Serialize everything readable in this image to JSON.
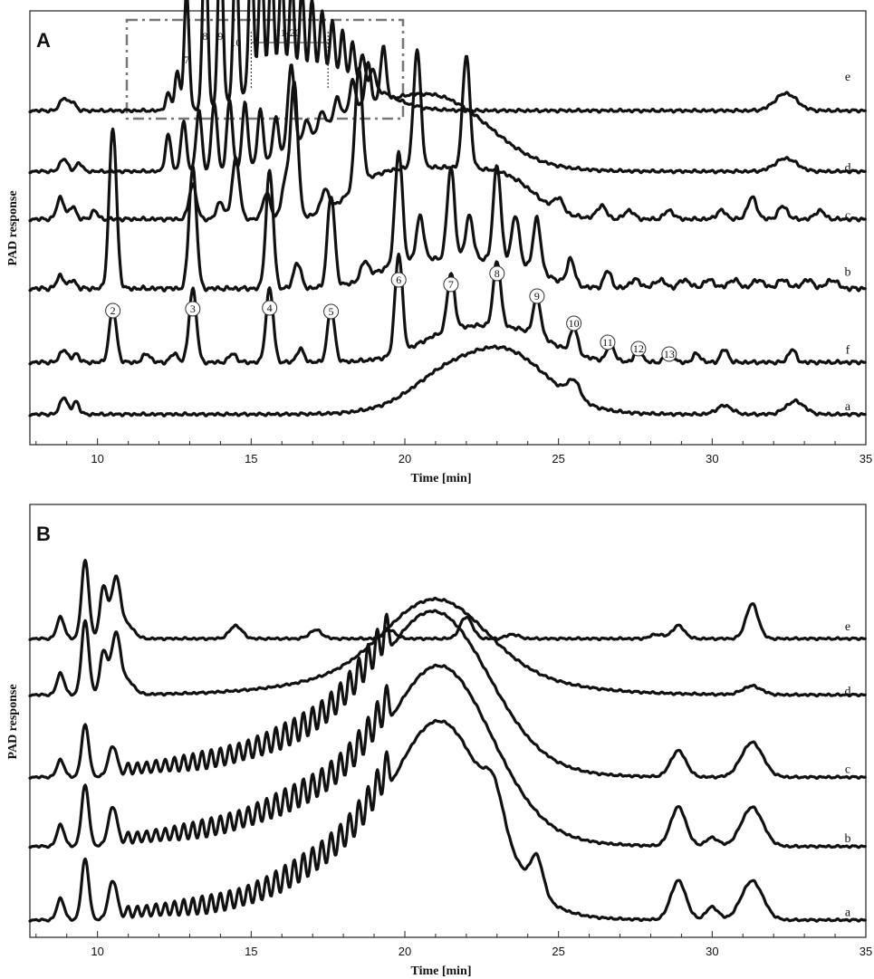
{
  "chart_data": [
    {
      "type": "line",
      "panel_label": "A",
      "xlabel": "Time [min]",
      "ylabel": "PAD response",
      "xlim": [
        7.8,
        35
      ],
      "xticks": [
        10,
        15,
        20,
        25,
        30,
        35
      ],
      "series": [
        {
          "name": "e",
          "label_y": 0.85,
          "baseline": 0.77,
          "sample_peaks": [
            [
              12.9,
              0.27
            ],
            [
              13.5,
              0.42
            ],
            [
              14.0,
              0.4
            ],
            [
              14.5,
              0.36
            ],
            [
              16.0,
              0.31
            ],
            [
              17.5,
              0.22
            ],
            [
              18.5,
              0.11
            ],
            [
              32.4,
              0.04
            ]
          ]
        },
        {
          "name": "d",
          "label_y": 0.64,
          "baseline": 0.63,
          "sample_peaks": [
            [
              13.5,
              0.18
            ],
            [
              14.0,
              0.17
            ],
            [
              15.0,
              0.15
            ],
            [
              16.3,
              0.23
            ],
            [
              18.0,
              0.17
            ],
            [
              19.5,
              0.13
            ],
            [
              21.0,
              0.18
            ],
            [
              32.4,
              0.03
            ]
          ]
        },
        {
          "name": "c",
          "label_y": 0.53,
          "baseline": 0.52,
          "sample_peaks": [
            [
              13.1,
              0.08
            ],
            [
              14.5,
              0.14
            ],
            [
              16.4,
              0.31
            ],
            [
              18.5,
              0.27
            ],
            [
              20.4,
              0.27
            ],
            [
              22.0,
              0.26
            ],
            [
              23.5,
              0.17
            ],
            [
              31.3,
              0.05
            ]
          ]
        },
        {
          "name": "b",
          "label_y": 0.4,
          "baseline": 0.36,
          "sample_peaks": [
            [
              10.5,
              0.37
            ],
            [
              13.1,
              0.28
            ],
            [
              15.6,
              0.27
            ],
            [
              17.6,
              0.21
            ],
            [
              19.8,
              0.26
            ],
            [
              21.5,
              0.21
            ],
            [
              23.0,
              0.22
            ],
            [
              24.3,
              0.12
            ]
          ]
        },
        {
          "name": "f",
          "label_y": 0.22,
          "baseline": 0.19,
          "sample_peaks": [
            [
              10.5,
              0.12
            ],
            [
              13.1,
              0.17
            ],
            [
              15.6,
              0.17
            ],
            [
              17.6,
              0.12
            ],
            [
              19.8,
              0.23
            ],
            [
              21.5,
              0.16
            ],
            [
              23.0,
              0.18
            ],
            [
              24.3,
              0.11
            ],
            [
              25.5,
              0.06
            ]
          ]
        },
        {
          "name": "a",
          "label_y": 0.09,
          "baseline": 0.07,
          "sample_peaks": [
            [
              9.2,
              0.04
            ],
            [
              23.2,
              0.17
            ],
            [
              25.5,
              0.04
            ],
            [
              30.4,
              0.02
            ],
            [
              32.7,
              0.03
            ]
          ]
        }
      ],
      "annotations": {
        "top_labels": [
          "7",
          "8",
          "9",
          "10",
          "11-20"
        ],
        "circled": [
          "2",
          "3",
          "4",
          "5",
          "6",
          "7",
          "8",
          "9",
          "10",
          "11",
          "12",
          "13"
        ]
      }
    },
    {
      "type": "line",
      "panel_label": "B",
      "xlabel": "Time [min]",
      "ylabel": "PAD response",
      "xlim": [
        7.8,
        35
      ],
      "xticks": [
        10,
        15,
        20,
        25,
        30,
        35
      ],
      "series": [
        {
          "name": "e",
          "label_y": 0.72,
          "baseline": 0.69,
          "sample_peaks": [
            [
              9.6,
              0.18
            ],
            [
              10.5,
              0.14
            ],
            [
              22.0,
              0.05
            ],
            [
              28.9,
              0.03
            ],
            [
              31.3,
              0.08
            ]
          ]
        },
        {
          "name": "d",
          "label_y": 0.57,
          "baseline": 0.56,
          "sample_peaks": [
            [
              9.6,
              0.17
            ],
            [
              10.5,
              0.14
            ],
            [
              21.0,
              0.21
            ],
            [
              31.3,
              0.02
            ]
          ]
        },
        {
          "name": "c",
          "label_y": 0.39,
          "baseline": 0.37,
          "sample_peaks": [
            [
              9.6,
              0.12
            ],
            [
              10.5,
              0.07
            ],
            [
              21.0,
              0.4
            ],
            [
              28.9,
              0.06
            ],
            [
              31.3,
              0.08
            ]
          ]
        },
        {
          "name": "b",
          "label_y": 0.23,
          "baseline": 0.21,
          "sample_peaks": [
            [
              9.6,
              0.14
            ],
            [
              10.5,
              0.09
            ],
            [
              21.2,
              0.44
            ],
            [
              28.9,
              0.09
            ],
            [
              31.3,
              0.09
            ]
          ]
        },
        {
          "name": "a",
          "label_y": 0.06,
          "baseline": 0.04,
          "sample_peaks": [
            [
              9.6,
              0.14
            ],
            [
              10.5,
              0.09
            ],
            [
              21.2,
              0.48
            ],
            [
              24.3,
              0.08
            ],
            [
              28.9,
              0.09
            ],
            [
              31.3,
              0.09
            ]
          ]
        }
      ]
    }
  ]
}
